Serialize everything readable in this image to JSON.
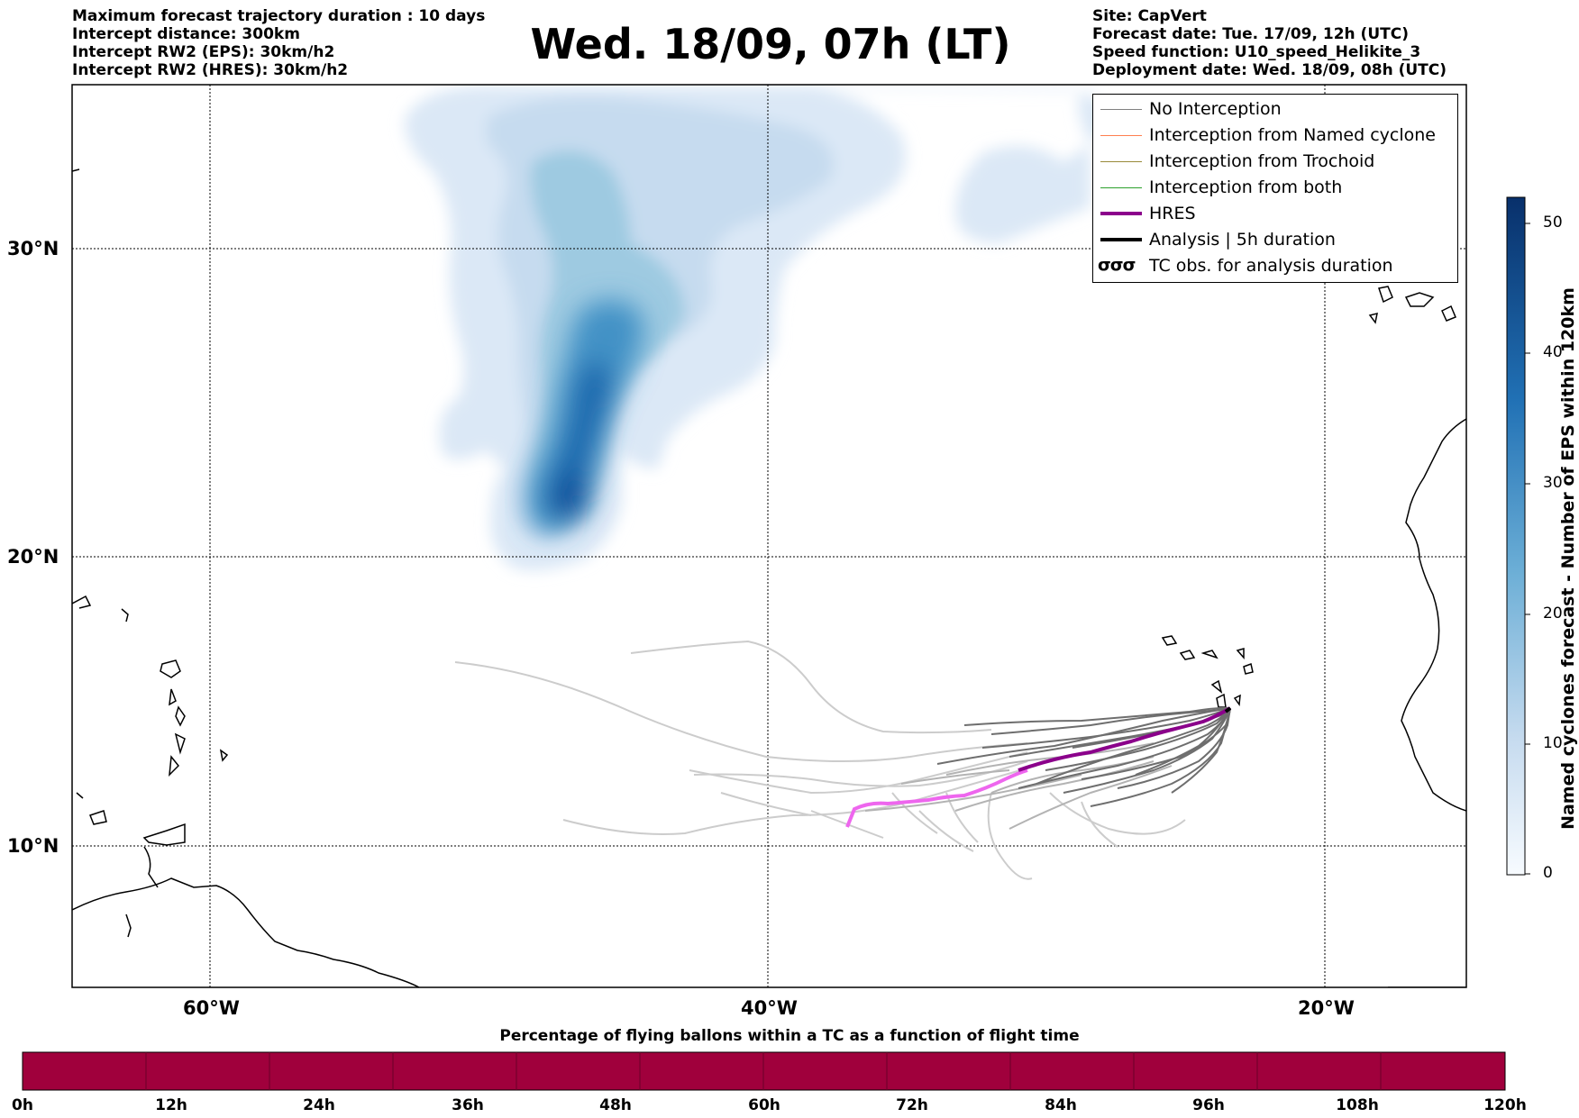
{
  "header": {
    "left_lines": [
      "Maximum forecast trajectory duration : 10 days",
      "Intercept distance: 300km",
      "Intercept RW2 (EPS):  30km/h2",
      "Intercept RW2 (HRES): 30km/h2"
    ],
    "title": "Wed. 18/09, 07h (LT)",
    "right_lines": [
      "Site: CapVert",
      "Forecast date: Tue. 17/09, 12h (UTC)",
      "Speed function: U10_speed_Helikite_3",
      "Deployment date: Wed. 18/09, 08h (UTC)"
    ]
  },
  "map": {
    "lat_labels": [
      "30°N",
      "20°N",
      "10°N"
    ],
    "lon_labels": [
      "60°W",
      "40°W",
      "20°W"
    ],
    "gridlines": true
  },
  "legend": {
    "items": [
      {
        "label": "No Interception",
        "color": "#808080"
      },
      {
        "label": "Interception from Named cyclone",
        "color": "#ff7f50"
      },
      {
        "label": "Interception from Trochoid",
        "color": "#998a3a"
      },
      {
        "label": "Interception from both",
        "color": "#2ca02c"
      },
      {
        "label": "HRES",
        "color": "#8b008b"
      },
      {
        "label": "Analysis | 5h duration",
        "color": "#000000"
      }
    ],
    "tc_obs": {
      "symbol": "σσσ",
      "label": "TC obs. for analysis duration"
    }
  },
  "colorbar": {
    "label": "Named cyclones forecast - Number of EPS within 120km",
    "ticks": [
      "50",
      "40",
      "30",
      "20",
      "10",
      "0"
    ],
    "colors": {
      "low": "#f7fbff",
      "high": "#08306b"
    }
  },
  "bottom_bar": {
    "title": "Percentage of flying ballons within a TC as a function of flight time",
    "ticks": [
      "0h",
      "12h",
      "24h",
      "36h",
      "48h",
      "60h",
      "72h",
      "84h",
      "96h",
      "108h",
      "120h"
    ],
    "color": "#a0003c"
  }
}
